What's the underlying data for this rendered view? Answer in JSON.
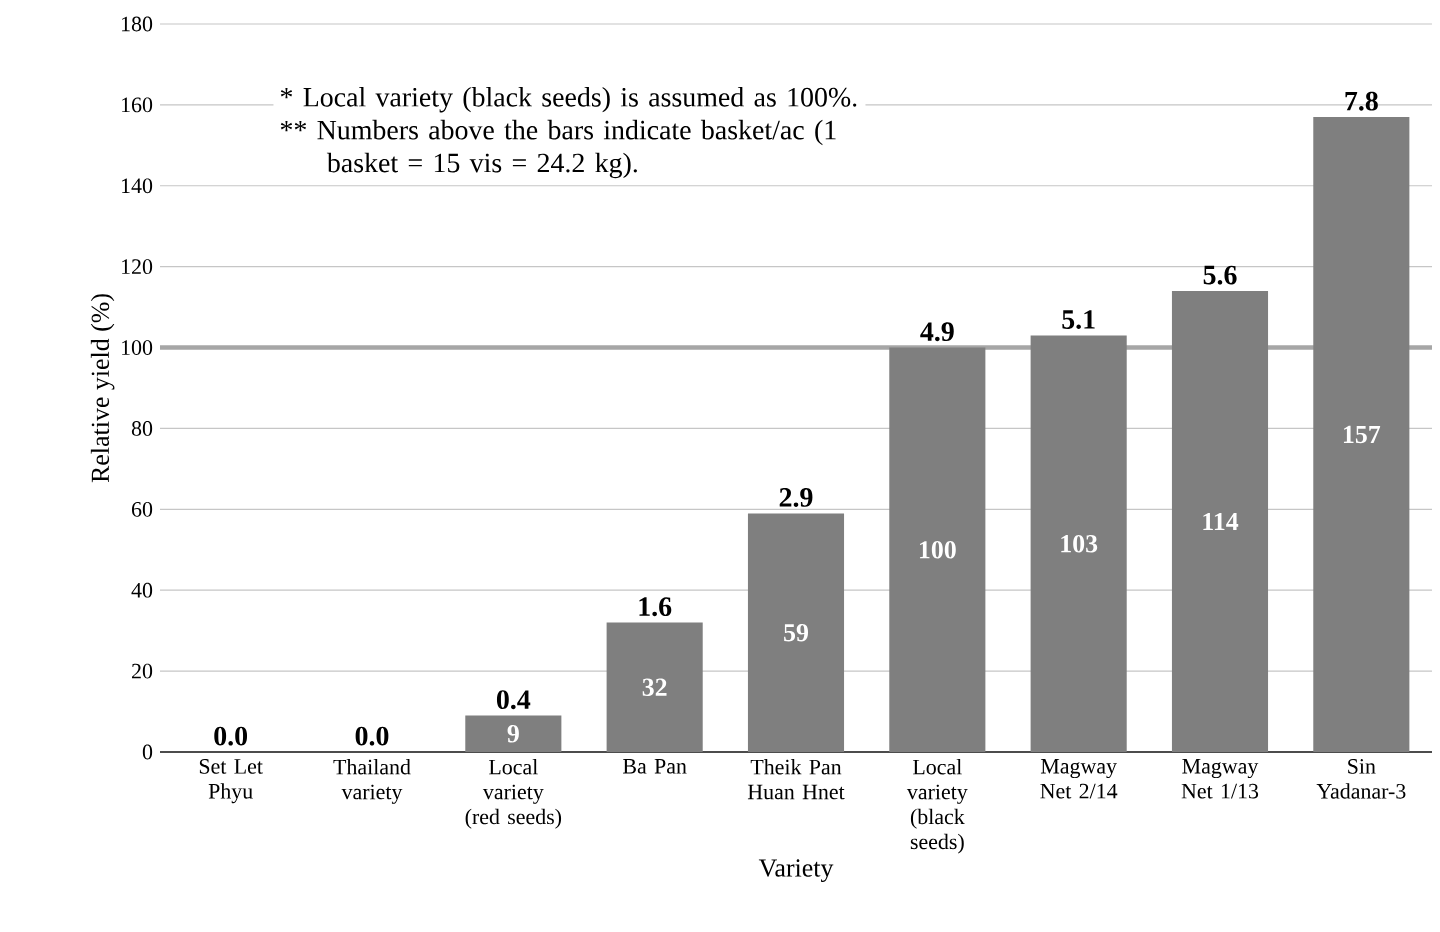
{
  "chart_data": {
    "type": "bar",
    "xlabel": "Variety",
    "ylabel": "Relative yield (%)",
    "categories": [
      "Set Let Phyu",
      "Thailand variety",
      "Local variety (red seeds)",
      "Ba Pan",
      "Theik Pan Huan Hnet",
      "Local variety (black seeds)",
      "Magway Net 2/14",
      "Magway Net 1/13",
      "Sin Yadanar-3"
    ],
    "values": [
      0,
      0,
      9,
      32,
      59,
      100,
      103,
      114,
      157
    ],
    "value_labels": [
      null,
      null,
      "9",
      "32",
      "59",
      "100",
      "103",
      "114",
      "157"
    ],
    "color": "#7f7f7f",
    "ylim": [
      0,
      180
    ],
    "yticks": [
      0,
      20,
      40,
      60,
      80,
      100,
      120,
      140,
      160,
      180
    ],
    "grid": "y",
    "ref_lines": [
      {
        "axis": "y",
        "value": 100,
        "color": "#a6a6a6"
      }
    ],
    "annotations": [
      "* Local variety (black seeds) is assumed as 100%.",
      "** Numbers above the bars indicate basket/ac (1 basket = 15 vis = 24.2 kg).",
      {
        "text": "0.0",
        "x": "Set Let Phyu",
        "y": 0
      },
      {
        "text": "0.0",
        "x": "Thailand variety",
        "y": 0
      },
      {
        "text": "0.4",
        "x": "Local variety (red seeds)",
        "y": 9
      },
      {
        "text": "1.6",
        "x": "Ba Pan",
        "y": 32
      },
      {
        "text": "2.9",
        "x": "Theik Pan Huan Hnet",
        "y": 59
      },
      {
        "text": "4.9",
        "x": "Local variety (black seeds)",
        "y": 100
      },
      {
        "text": "5.1",
        "x": "Magway Net 2/14",
        "y": 103
      },
      {
        "text": "5.6",
        "x": "Magway Net 1/13",
        "y": 114
      },
      {
        "text": "7.8",
        "x": "Sin Yadanar-3",
        "y": 157
      }
    ]
  }
}
